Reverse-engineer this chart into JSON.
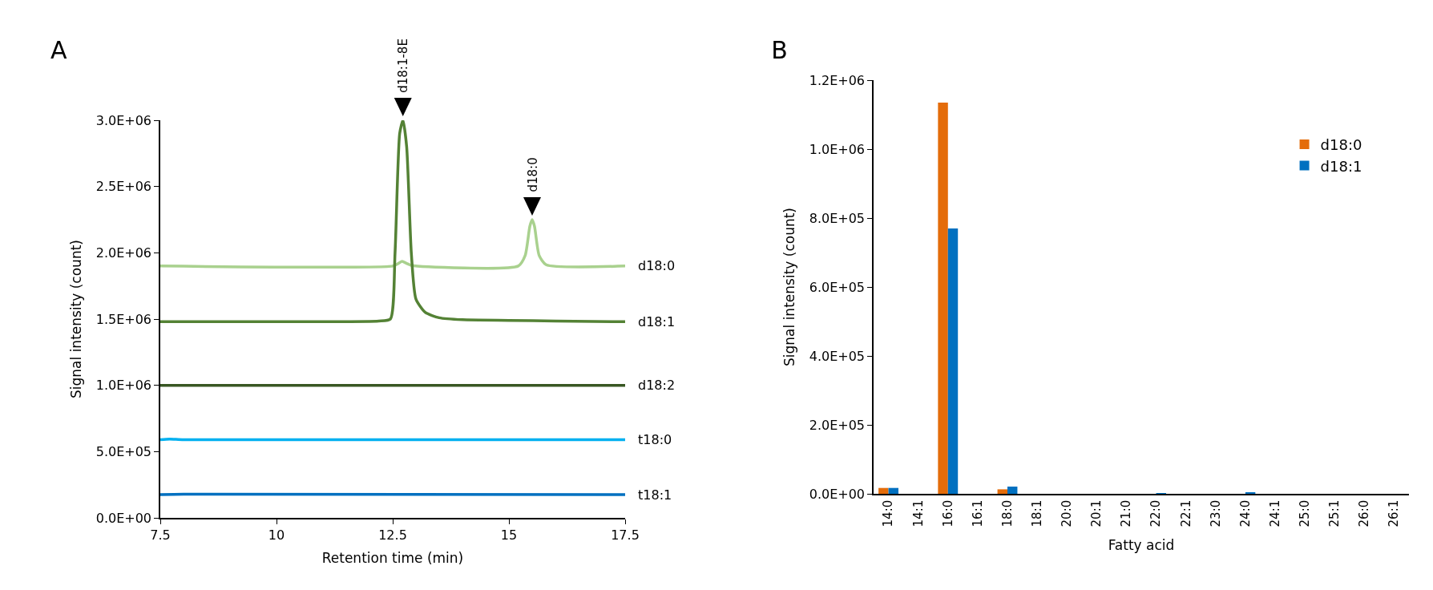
{
  "chart_data": [
    {
      "type": "line",
      "title": "A",
      "xlabel": "Retention time (min)",
      "ylabel": "Signal intensity (count)",
      "xlim": [
        7.5,
        17.5
      ],
      "xticks": [
        7.5,
        10,
        12.5,
        15,
        17.5
      ],
      "ylim": [
        0,
        3000000
      ],
      "yticks": [
        {
          "value": 0,
          "label": "0.0E+00"
        },
        {
          "value": 500000,
          "label": "5.0E+05"
        },
        {
          "value": 1000000,
          "label": "1.0E+06"
        },
        {
          "value": 1500000,
          "label": "1.5E+06"
        },
        {
          "value": 2000000,
          "label": "2.0E+06"
        },
        {
          "value": 2500000,
          "label": "2.5E+06"
        },
        {
          "value": 3000000,
          "label": "3.0E+06"
        }
      ],
      "grid": false,
      "legend": false,
      "marker": "none",
      "line_style": "solid",
      "series": [
        {
          "name": "d18:0",
          "color": "#a9d18e",
          "x": [
            7.5,
            12.5,
            12.6,
            12.7,
            12.8,
            12.9,
            15.2,
            15.35,
            15.45,
            15.5,
            15.55,
            15.65,
            15.8,
            17.5
          ],
          "values": [
            1900000,
            1900000,
            1915000,
            1935000,
            1920000,
            1905000,
            1900000,
            1980000,
            2200000,
            2250000,
            2200000,
            1980000,
            1910000,
            1900000
          ]
        },
        {
          "name": "d18:1",
          "color": "#548235",
          "x": [
            7.5,
            9,
            11,
            12.2,
            12.45,
            12.55,
            12.65,
            12.72,
            12.8,
            12.9,
            13.0,
            13.2,
            13.5,
            14,
            15,
            16,
            17.5
          ],
          "values": [
            1480000,
            1480000,
            1480000,
            1485000,
            1500000,
            2000000,
            2900000,
            3000000,
            2800000,
            2000000,
            1650000,
            1550000,
            1510000,
            1495000,
            1490000,
            1485000,
            1480000
          ]
        },
        {
          "name": "d18:2",
          "color": "#385723",
          "x": [
            7.5,
            17.5
          ],
          "values": [
            1000000,
            1000000
          ]
        },
        {
          "name": "t18:0",
          "color": "#00b0f0",
          "x": [
            7.5,
            7.7,
            8,
            17.5
          ],
          "values": [
            590000,
            595000,
            590000,
            590000
          ]
        },
        {
          "name": "t18:1",
          "color": "#0070c0",
          "x": [
            7.5,
            8,
            17.5
          ],
          "values": [
            175000,
            178000,
            175000
          ]
        }
      ],
      "annotations": [
        {
          "text": "d18:1-8E",
          "x": 12.72,
          "y": 3000000
        },
        {
          "text": "d18:0",
          "x": 15.5,
          "y": 2250000
        }
      ]
    },
    {
      "type": "bar",
      "title": "B",
      "xlabel": "Fatty acid",
      "ylabel": "Signal intensity (count)",
      "categories": [
        "14:0",
        "14:1",
        "16:0",
        "16:1",
        "18:0",
        "18:1",
        "20:0",
        "20:1",
        "21:0",
        "22:0",
        "22:1",
        "23:0",
        "24:0",
        "24:1",
        "25:0",
        "25:1",
        "26:0",
        "26:1"
      ],
      "ylim": [
        0,
        1200000
      ],
      "yticks": [
        {
          "value": 0,
          "label": "0.0E+00"
        },
        {
          "value": 200000,
          "label": "2.0E+05"
        },
        {
          "value": 400000,
          "label": "4.0E+05"
        },
        {
          "value": 600000,
          "label": "6.0E+05"
        },
        {
          "value": 800000,
          "label": "8.0E+05"
        },
        {
          "value": 1000000,
          "label": "1.0E+06"
        },
        {
          "value": 1200000,
          "label": "1.2E+06"
        }
      ],
      "grid": false,
      "legend": "top right",
      "series": [
        {
          "name": "d18:0",
          "color": "#e46c0a",
          "values": [
            17000,
            0,
            1135000,
            0,
            13000,
            0,
            0,
            0,
            0,
            0,
            0,
            0,
            0,
            0,
            0,
            0,
            0,
            0
          ]
        },
        {
          "name": "d18:1",
          "color": "#0070c0",
          "values": [
            17000,
            0,
            770000,
            0,
            21000,
            0,
            0,
            0,
            0,
            2000,
            0,
            0,
            3000,
            0,
            0,
            0,
            0,
            0
          ]
        }
      ]
    }
  ]
}
